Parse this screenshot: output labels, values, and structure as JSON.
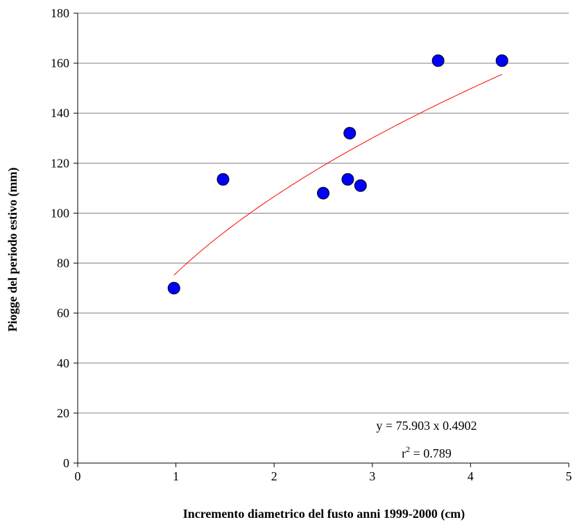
{
  "chart_data": {
    "type": "scatter",
    "xlabel": "Incremento diametrico del fusto anni 1999-2000 (cm)",
    "ylabel": "Piogge del periodo estivo (mm)",
    "xlim": [
      0,
      5
    ],
    "ylim": [
      0,
      180
    ],
    "x_ticks": [
      0,
      1,
      2,
      3,
      4,
      5
    ],
    "y_ticks": [
      0,
      20,
      40,
      60,
      80,
      100,
      120,
      140,
      160,
      180
    ],
    "x_tick_labels": [
      "0",
      "1",
      "2",
      "3",
      "4",
      "5"
    ],
    "y_tick_labels": [
      "0",
      "20",
      "40",
      "60",
      "80",
      "100",
      "120",
      "140",
      "160",
      "180"
    ],
    "grid": "horizontal",
    "series": [
      {
        "points": [
          {
            "x": 0.98,
            "y": 70
          },
          {
            "x": 1.48,
            "y": 113.5
          },
          {
            "x": 2.5,
            "y": 108
          },
          {
            "x": 2.75,
            "y": 113.5
          },
          {
            "x": 2.77,
            "y": 132
          },
          {
            "x": 2.88,
            "y": 111
          },
          {
            "x": 3.67,
            "y": 161
          },
          {
            "x": 4.32,
            "y": 161
          }
        ],
        "color": "#0000ff"
      }
    ],
    "trendline": {
      "type": "power",
      "coefficient": 75.903,
      "exponent": 0.4902,
      "x_range": [
        0.98,
        4.32
      ],
      "color": "#ff0000"
    },
    "annotations": {
      "equation_prefix": "y = 75.903 x ",
      "equation_exponent": "0.4902",
      "r2_base": "r",
      "r2_sup": "2",
      "r2_value": " = 0.789"
    }
  }
}
